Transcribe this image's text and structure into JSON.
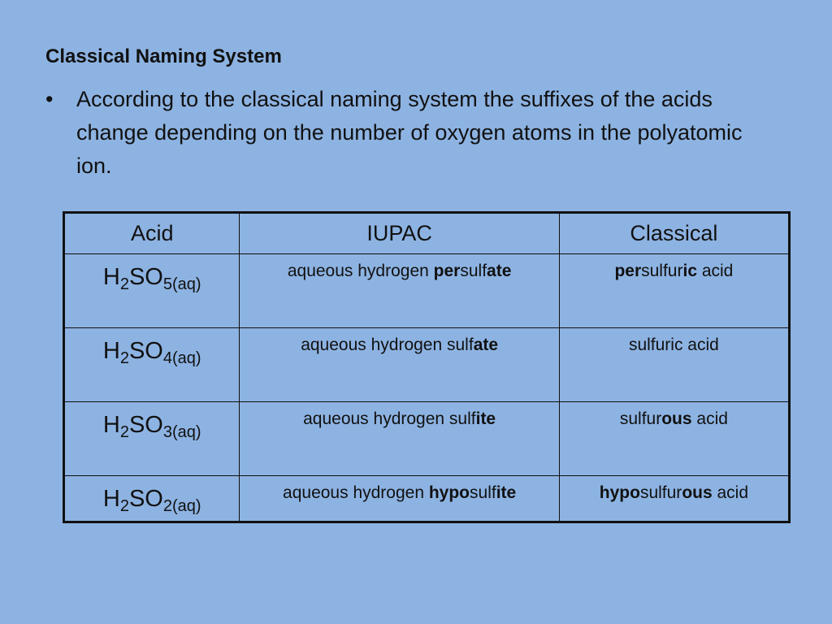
{
  "title": "Classical Naming System",
  "bullet": "According to the classical naming system the suffixes of the acids change depending on the number of oxygen atoms in the polyatomic ion.",
  "background_color": "#8db3e2",
  "table": {
    "headers": [
      "Acid",
      "IUPAC",
      "Classical"
    ],
    "rows": [
      {
        "acid": [
          "H",
          "2",
          "SO",
          "5(aq)"
        ],
        "iupac": [
          {
            "t": "aqueous hydrogen ",
            "b": false
          },
          {
            "t": "per",
            "b": true
          },
          {
            "t": "sulf",
            "b": false
          },
          {
            "t": "ate",
            "b": true
          }
        ],
        "classical": [
          {
            "t": "per",
            "b": true
          },
          {
            "t": "sulfur",
            "b": false
          },
          {
            "t": "ic",
            "b": true
          },
          {
            "t": " acid",
            "b": false
          }
        ]
      },
      {
        "acid": [
          "H",
          "2",
          "SO",
          "4(aq)"
        ],
        "iupac": [
          {
            "t": "aqueous hydrogen sulf",
            "b": false
          },
          {
            "t": "ate",
            "b": true
          }
        ],
        "classical": [
          {
            "t": "sulfuric acid",
            "b": false
          }
        ]
      },
      {
        "acid": [
          "H",
          "2",
          "SO",
          "3(aq)"
        ],
        "iupac": [
          {
            "t": "aqueous hydrogen sulf",
            "b": false
          },
          {
            "t": "ite",
            "b": true
          }
        ],
        "classical": [
          {
            "t": "sulfur",
            "b": false
          },
          {
            "t": "ous",
            "b": true
          },
          {
            "t": " acid",
            "b": false
          }
        ]
      },
      {
        "acid": [
          "H",
          "2",
          "SO",
          "2(aq)"
        ],
        "iupac": [
          {
            "t": "aqueous hydrogen ",
            "b": false
          },
          {
            "t": "hypo",
            "b": true
          },
          {
            "t": "sulf",
            "b": false
          },
          {
            "t": "ite",
            "b": true
          }
        ],
        "classical": [
          {
            "t": "hypo",
            "b": true
          },
          {
            "t": "sulfur",
            "b": false
          },
          {
            "t": "ous",
            "b": true
          },
          {
            "t": " acid",
            "b": false
          }
        ]
      }
    ]
  }
}
